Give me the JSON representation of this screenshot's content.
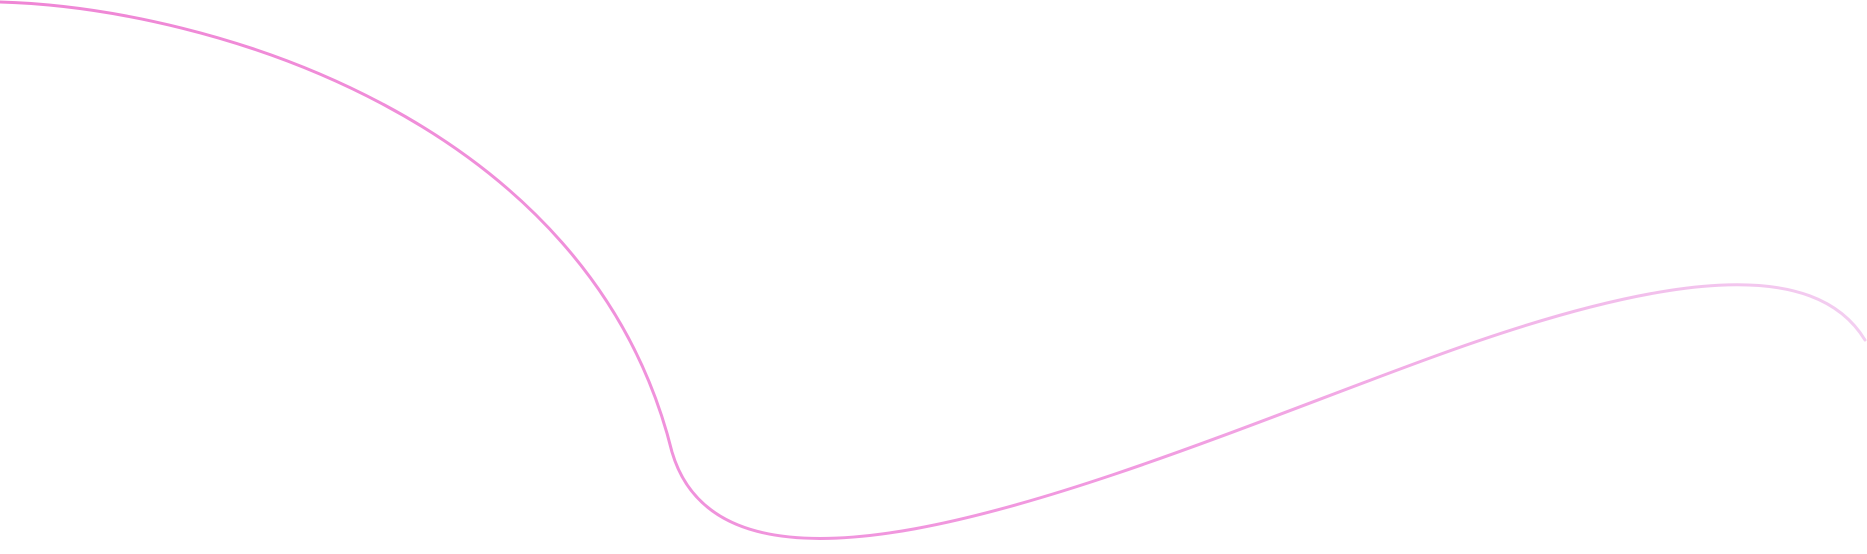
{
  "background_color": "#ffffff",
  "line": {
    "color_start": "#ef86d5",
    "color_mid": "#f19ae0",
    "color_end": "#f3cff1"
  }
}
